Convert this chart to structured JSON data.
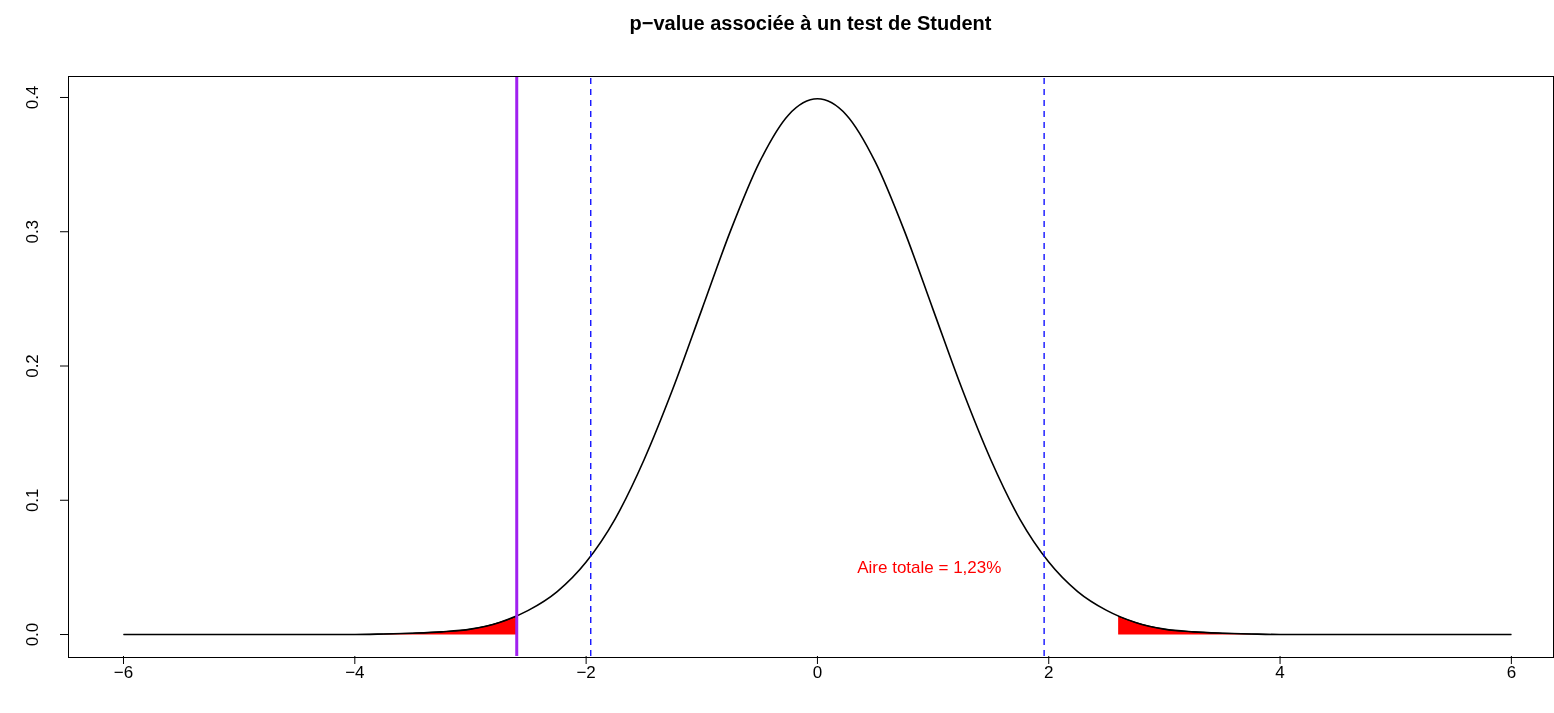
{
  "chart_data": {
    "type": "line",
    "title": "p−value associée à un test de Student",
    "xlim": [
      -6.48,
      6.36
    ],
    "ylim": [
      -0.016,
      0.416
    ],
    "xticks": [
      {
        "value": -6,
        "label": "−6"
      },
      {
        "value": -4,
        "label": "−4"
      },
      {
        "value": -2,
        "label": "−2"
      },
      0,
      2,
      4,
      6
    ],
    "yticks": [
      {
        "value": 0,
        "label": "0.0"
      },
      0.1,
      0.2,
      0.3,
      0.4
    ],
    "marker": "none",
    "series": [
      {
        "type": "area",
        "color": "#ff0000",
        "x": [
          -6,
          -5.5,
          -5,
          -4.5,
          -4,
          -3.75,
          -3.5,
          -3.25,
          -3,
          -2.75,
          -2.6
        ],
        "values": [
          0,
          0,
          0,
          0,
          0,
          0.0004,
          0.001,
          0.002,
          0.004,
          0.009,
          0.0136
        ]
      },
      {
        "type": "area",
        "color": "#ff0000",
        "x": [
          2.6,
          2.75,
          3,
          3.25,
          3.5,
          3.75,
          4,
          4.5,
          5,
          5.5,
          6
        ],
        "values": [
          0.0136,
          0.009,
          0.004,
          0.002,
          0.001,
          0.0004,
          0,
          0,
          0,
          0,
          0
        ]
      },
      {
        "color": "#000000",
        "line_style": "solid",
        "x": [
          -6,
          -5.5,
          -5,
          -4.5,
          -4,
          -3.75,
          -3.5,
          -3.25,
          -3,
          -2.75,
          -2.5,
          -2.25,
          -2,
          -1.75,
          -1.5,
          -1.25,
          -1,
          -0.75,
          -0.5,
          -0.25,
          0,
          0.25,
          0.5,
          0.75,
          1,
          1.25,
          1.5,
          1.75,
          2,
          2.25,
          2.5,
          2.75,
          3,
          3.25,
          3.5,
          3.75,
          4,
          4.5,
          5,
          5.5,
          6
        ],
        "values": [
          0,
          0,
          0,
          0,
          0,
          0.0004,
          0.001,
          0.002,
          0.004,
          0.009,
          0.018,
          0.032,
          0.054,
          0.086,
          0.13,
          0.183,
          0.242,
          0.301,
          0.352,
          0.387,
          0.399,
          0.387,
          0.352,
          0.301,
          0.242,
          0.183,
          0.13,
          0.086,
          0.054,
          0.032,
          0.018,
          0.009,
          0.004,
          0.002,
          0.001,
          0.0004,
          0,
          0,
          0,
          0,
          0
        ]
      }
    ],
    "ref_lines": [
      {
        "axis": "x",
        "value": -1.96,
        "color": "#0000ff",
        "line_style": "dashed"
      },
      {
        "axis": "x",
        "value": 1.96,
        "color": "#0000ff",
        "line_style": "dashed"
      },
      {
        "axis": "x",
        "value": -2.6,
        "color": "#a020f0",
        "line_style": "solid"
      }
    ],
    "annotations": [
      "Aire totale = 1,23%"
    ]
  }
}
